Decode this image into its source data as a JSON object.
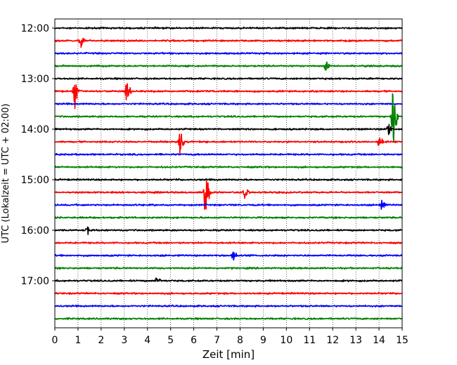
{
  "chart_data": {
    "type": "line",
    "title": "",
    "xlabel": "Zeit  [min]",
    "ylabel": "UTC (Lokalzeit = UTC + 02:00)",
    "x_range": [
      0,
      15
    ],
    "x_ticks": [
      0,
      1,
      2,
      3,
      4,
      5,
      6,
      7,
      8,
      9,
      10,
      11,
      12,
      13,
      14,
      15
    ],
    "y_ticks": [
      "12:00",
      "13:00",
      "14:00",
      "15:00",
      "16:00",
      "17:00"
    ],
    "grid": "vertical dotted lines at each minute",
    "trace_colors": [
      "#000000",
      "#ff0000",
      "#0000ff",
      "#008000"
    ],
    "traces": [
      {
        "start_utc": "12:00",
        "color": "#000000",
        "events": []
      },
      {
        "start_utc": "12:15",
        "color": "#ff0000",
        "events": [
          {
            "t": 1.1,
            "amp": 0.3
          }
        ]
      },
      {
        "start_utc": "12:30",
        "color": "#0000ff",
        "events": []
      },
      {
        "start_utc": "12:45",
        "color": "#008000",
        "events": [
          {
            "t": 11.7,
            "amp": 0.2
          }
        ]
      },
      {
        "start_utc": "13:00",
        "color": "#000000",
        "events": []
      },
      {
        "start_utc": "13:15",
        "color": "#ff0000",
        "events": [
          {
            "t": 0.85,
            "amp": 0.7
          },
          {
            "t": 3.1,
            "amp": 0.4
          }
        ]
      },
      {
        "start_utc": "13:30",
        "color": "#0000ff",
        "events": []
      },
      {
        "start_utc": "13:45",
        "color": "#008000",
        "events": [
          {
            "t": 14.6,
            "amp": 1.2
          }
        ]
      },
      {
        "start_utc": "14:00",
        "color": "#000000",
        "events": [
          {
            "t": 14.4,
            "amp": 0.3
          }
        ]
      },
      {
        "start_utc": "14:15",
        "color": "#ff0000",
        "events": [
          {
            "t": 5.4,
            "amp": 0.5
          },
          {
            "t": 14.0,
            "amp": 0.2
          }
        ]
      },
      {
        "start_utc": "14:30",
        "color": "#0000ff",
        "events": []
      },
      {
        "start_utc": "14:45",
        "color": "#008000",
        "events": []
      },
      {
        "start_utc": "15:00",
        "color": "#000000",
        "events": []
      },
      {
        "start_utc": "15:15",
        "color": "#ff0000",
        "events": [
          {
            "t": 6.5,
            "amp": 1.0
          },
          {
            "t": 8.2,
            "amp": 0.3
          }
        ]
      },
      {
        "start_utc": "15:30",
        "color": "#0000ff",
        "events": [
          {
            "t": 14.1,
            "amp": 0.25
          }
        ]
      },
      {
        "start_utc": "15:45",
        "color": "#008000",
        "events": []
      },
      {
        "start_utc": "16:00",
        "color": "#000000",
        "events": [
          {
            "t": 1.4,
            "amp": 0.2
          }
        ]
      },
      {
        "start_utc": "16:15",
        "color": "#ff0000",
        "events": []
      },
      {
        "start_utc": "16:30",
        "color": "#0000ff",
        "events": [
          {
            "t": 7.7,
            "amp": 0.25
          }
        ]
      },
      {
        "start_utc": "16:45",
        "color": "#008000",
        "events": []
      },
      {
        "start_utc": "17:00",
        "color": "#000000",
        "events": [
          {
            "t": 4.4,
            "amp": 0.2
          }
        ]
      },
      {
        "start_utc": "17:15",
        "color": "#ff0000",
        "events": []
      },
      {
        "start_utc": "17:30",
        "color": "#0000ff",
        "events": []
      },
      {
        "start_utc": "17:45",
        "color": "#008000",
        "events": []
      }
    ]
  }
}
